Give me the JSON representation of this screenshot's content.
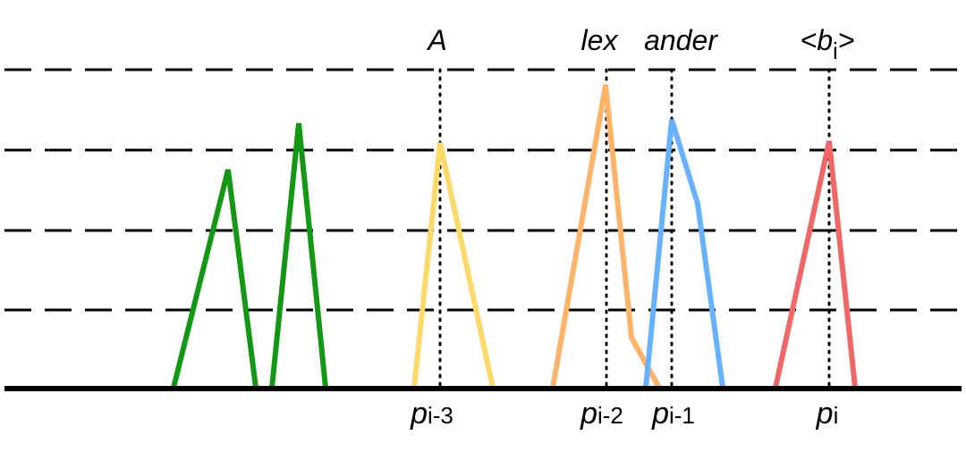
{
  "colors": {
    "baseline": "#000000",
    "gridline": "#000000",
    "green": "#129812",
    "yellow": "#FFD966",
    "orange": "#FFB366",
    "blue": "#66B2FF",
    "red": "#F26666"
  },
  "tokens": [
    {
      "label": "A",
      "pos_main": "p",
      "pos_sub": "i-3"
    },
    {
      "label": "lex",
      "pos_main": "p",
      "pos_sub": "i-2"
    },
    {
      "label": "ander",
      "pos_main": "p",
      "pos_sub": "i-1"
    },
    {
      "label_open": "<b",
      "label_sub": "i",
      "label_close": ">",
      "pos_main": "p",
      "pos_sub": "i"
    }
  ]
}
